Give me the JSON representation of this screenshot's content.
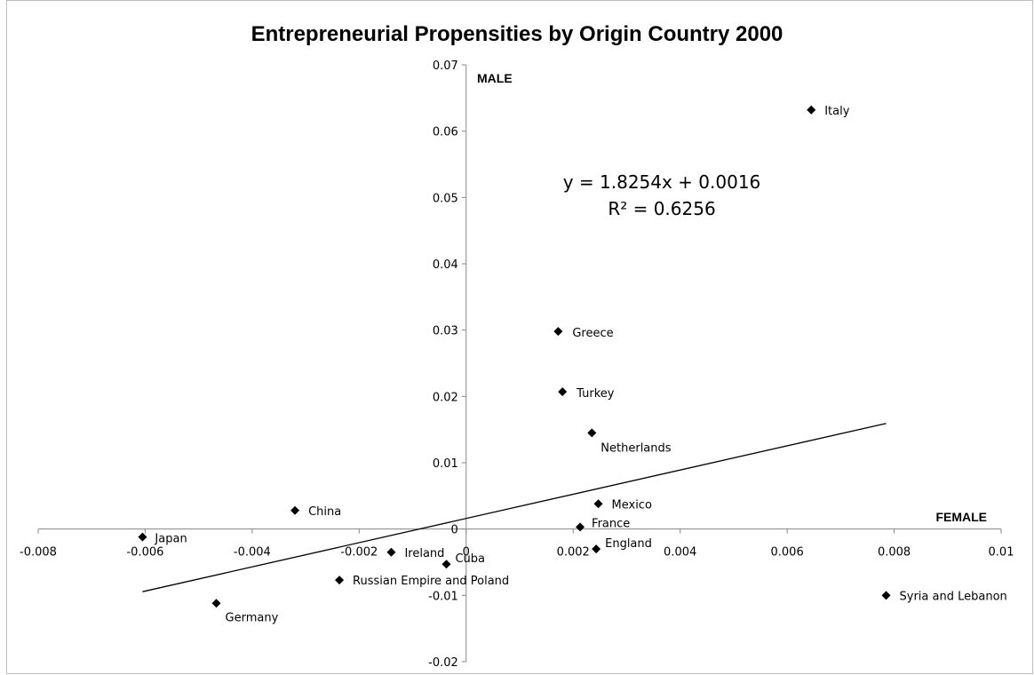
{
  "chart_data": {
    "type": "scatter",
    "title": "Entrepreneurial Propensities by Origin Country 2000",
    "xlabel": "FEMALE",
    "ylabel": "MALE",
    "xlim": [
      -0.008,
      0.01
    ],
    "ylim": [
      -0.02,
      0.07
    ],
    "x_ticks": [
      -0.008,
      -0.006,
      -0.004,
      -0.002,
      0,
      0.002,
      0.004,
      0.006,
      0.008,
      0.01
    ],
    "x_tick_labels": [
      "-0.008",
      "-0.006",
      "-0.004",
      "-0.002",
      "0",
      "0.002",
      "0.004",
      "0.006",
      "0.008",
      "0.01"
    ],
    "y_ticks": [
      -0.02,
      -0.01,
      0,
      0.01,
      0.02,
      0.03,
      0.04,
      0.05,
      0.06,
      0.07
    ],
    "y_tick_labels": [
      "-0.02",
      "-0.01",
      "0",
      "0.01",
      "0.02",
      "0.03",
      "0.04",
      "0.05",
      "0.06",
      "0.07"
    ],
    "grid": false,
    "legend": "none",
    "marker_color": "#000000",
    "points": [
      {
        "label": "Italy",
        "x": 0.00645,
        "y": 0.0632
      },
      {
        "label": "Greece",
        "x": 0.00172,
        "y": 0.0298
      },
      {
        "label": "Turkey",
        "x": 0.0018,
        "y": 0.0207
      },
      {
        "label": "Netherlands",
        "x": 0.00235,
        "y": 0.0145
      },
      {
        "label": "Mexico",
        "x": 0.00247,
        "y": 0.0038
      },
      {
        "label": "France",
        "x": 0.00213,
        "y": 0.0003
      },
      {
        "label": "England",
        "x": 0.00243,
        "y": -0.003
      },
      {
        "label": "China",
        "x": -0.0032,
        "y": 0.0028
      },
      {
        "label": "Japan",
        "x": -0.00605,
        "y": -0.0012
      },
      {
        "label": "Ireland",
        "x": -0.0014,
        "y": -0.0035
      },
      {
        "label": "Cuba",
        "x": -0.00037,
        "y": -0.0053
      },
      {
        "label": "Russian Empire and Poland",
        "x": -0.00237,
        "y": -0.0077
      },
      {
        "label": "Germany",
        "x": -0.00467,
        "y": -0.0112
      },
      {
        "label": "Syria and Lebanon",
        "x": 0.00785,
        "y": -0.01
      }
    ],
    "trendline": {
      "type": "linear",
      "slope": 1.8254,
      "intercept": 0.0016,
      "x_range": [
        -0.00605,
        0.00785
      ],
      "equation_text": "y = 1.8254x + 0.0016",
      "r2_text": "R² = 0.6256"
    }
  }
}
